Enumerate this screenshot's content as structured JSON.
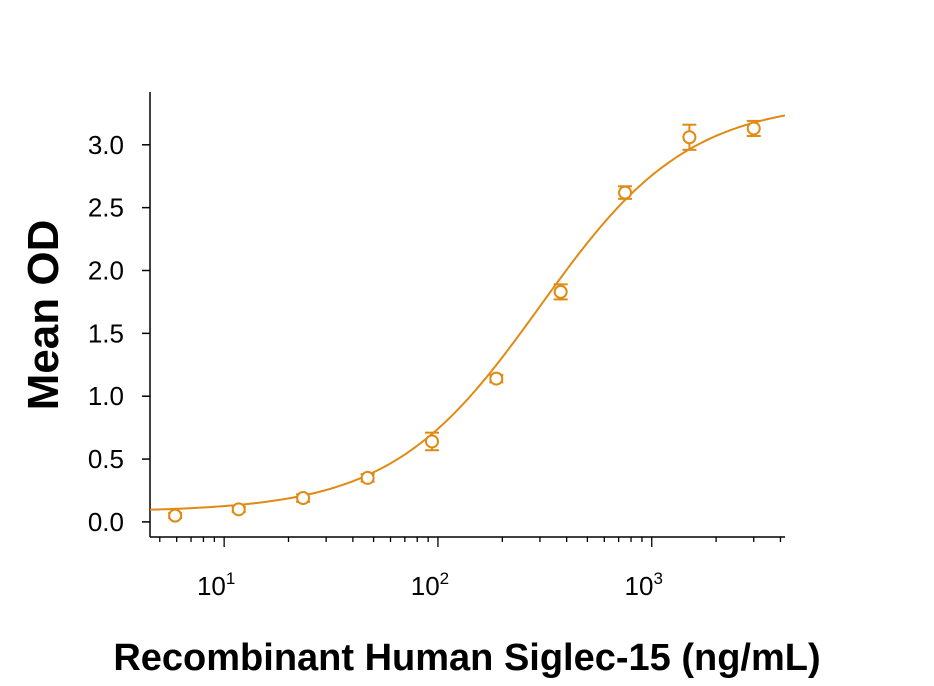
{
  "chart_data": {
    "type": "scatter",
    "xlabel": "Recombinant Human Siglec-15 (ng/mL)",
    "ylabel": "Mean OD",
    "x_scale": "log",
    "xlim": [
      4.5,
      4200
    ],
    "ylim": [
      -0.12,
      3.42
    ],
    "y_ticks": [
      "0.0",
      "0.5",
      "1.0",
      "1.5",
      "2.0",
      "2.5",
      "3.0"
    ],
    "x_ticks": [
      {
        "base": "10",
        "exp": "1"
      },
      {
        "base": "10",
        "exp": "2"
      },
      {
        "base": "10",
        "exp": "3"
      }
    ],
    "color": "#e08a14",
    "grid": false,
    "series": [
      {
        "x": [
          5.9,
          11.7,
          23.4,
          46.9,
          93.8,
          187.5,
          375,
          750,
          1500,
          3000
        ],
        "y": [
          0.05,
          0.1,
          0.19,
          0.35,
          0.64,
          1.14,
          1.83,
          2.62,
          3.06,
          3.13
        ],
        "err": [
          0.02,
          0.02,
          0.03,
          0.03,
          0.07,
          0.03,
          0.06,
          0.05,
          0.1,
          0.06
        ]
      }
    ],
    "fit": {
      "bottom": 0.08,
      "top": 3.35,
      "ec50": 300,
      "hill": 1.25
    }
  }
}
